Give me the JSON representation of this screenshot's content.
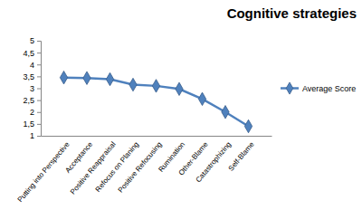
{
  "chart_data": {
    "type": "line",
    "title": "Cognitive strategies",
    "categories": [
      "Putting into Perspective",
      "Acceptance",
      "Positive Reappraisal",
      "Refocus on Planing",
      "Positive Refocusing",
      "Rumination",
      "Other-Blame",
      "Catastrophizing",
      "Self-Blame"
    ],
    "series": [
      {
        "name": "Average Score",
        "color": "#4f81bd",
        "marker": "diamond",
        "values": [
          3.45,
          3.43,
          3.38,
          3.15,
          3.1,
          2.97,
          2.55,
          2.0,
          1.4
        ]
      }
    ],
    "ylim": [
      1,
      5
    ],
    "yticks": [
      1,
      {
        "value": 1.5,
        "label": "1,5"
      },
      2,
      {
        "value": 2.5,
        "label": "2,5"
      },
      3,
      {
        "value": 3.5,
        "label": "3,5"
      },
      4,
      {
        "value": 4.5,
        "label": "4,5"
      },
      5
    ],
    "grid": false,
    "legend": "right"
  }
}
